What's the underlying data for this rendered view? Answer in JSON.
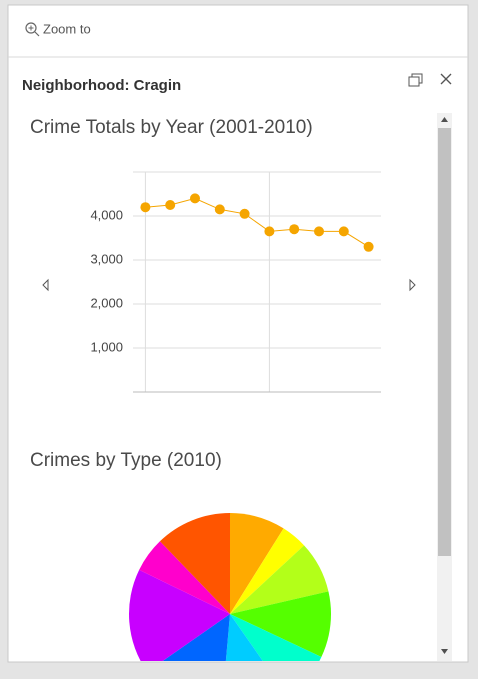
{
  "header": {
    "zoom_to": "Zoom to"
  },
  "popup": {
    "title": "Neighborhood: Cragin"
  },
  "chart_data": [
    {
      "type": "line",
      "title": "Crime Totals by Year (2001-2010)",
      "categories": [
        null,
        null,
        null,
        null,
        null,
        null,
        null,
        null,
        null,
        null
      ],
      "values": [
        4200,
        4250,
        4400,
        4150,
        4050,
        3650,
        3700,
        3650,
        3650,
        3300
      ],
      "color": "#f5a500",
      "ylim": [
        0,
        5000
      ],
      "yticks": [
        {
          "value": 1000,
          "label": "1,000"
        },
        {
          "value": 2000,
          "label": "2,000"
        },
        {
          "value": 3000,
          "label": "3,000"
        },
        {
          "value": 4000,
          "label": "4,000"
        }
      ],
      "grid": true
    },
    {
      "type": "pie",
      "title": "Crimes by Type (2010)",
      "categories": [
        null,
        null,
        null,
        null,
        null,
        null,
        null,
        null,
        null,
        null
      ],
      "values": [
        8.9,
        4.2,
        8.3,
        10.6,
        8.3,
        11.1,
        13.9,
        16.9,
        5.6,
        12.2
      ],
      "colors": [
        "#ffaa00",
        "#ffff00",
        "#b3ff19",
        "#55ff00",
        "#00ffcc",
        "#00ccff",
        "#0066ff",
        "#c800ff",
        "#ff00cc",
        "#ff5500"
      ]
    }
  ]
}
